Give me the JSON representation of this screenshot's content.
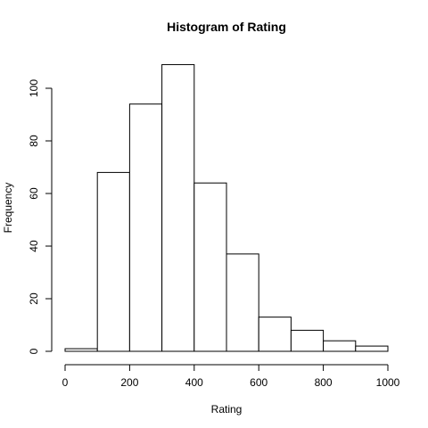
{
  "chart_data": {
    "type": "bar",
    "title": "Histogram of Rating",
    "xlabel": "Rating",
    "ylabel": "Frequency",
    "bins": [
      {
        "start": 0,
        "end": 100,
        "count": 1
      },
      {
        "start": 100,
        "end": 200,
        "count": 68
      },
      {
        "start": 200,
        "end": 300,
        "count": 94
      },
      {
        "start": 300,
        "end": 400,
        "count": 109
      },
      {
        "start": 400,
        "end": 500,
        "count": 64
      },
      {
        "start": 500,
        "end": 600,
        "count": 37
      },
      {
        "start": 600,
        "end": 700,
        "count": 13
      },
      {
        "start": 700,
        "end": 800,
        "count": 8
      },
      {
        "start": 800,
        "end": 900,
        "count": 4
      },
      {
        "start": 900,
        "end": 1000,
        "count": 2
      }
    ],
    "xlim": [
      0,
      1000
    ],
    "ylim": [
      0,
      100
    ],
    "x_ticks": [
      0,
      200,
      400,
      600,
      800,
      1000
    ],
    "y_ticks": [
      0,
      20,
      40,
      60,
      80,
      100
    ],
    "grid": false,
    "legend": "none",
    "bar_fill": "#ffffff",
    "bar_stroke": "#000000"
  }
}
